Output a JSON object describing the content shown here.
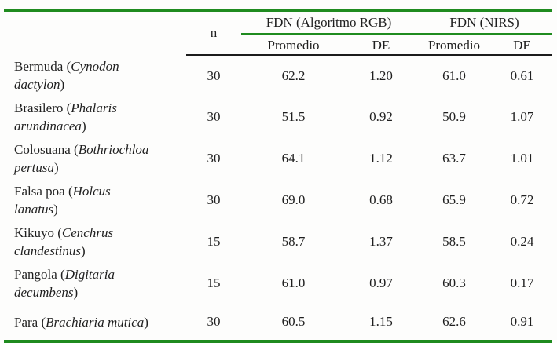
{
  "table": {
    "n_header": "n",
    "group_headers": [
      "FDN (Algoritmo RGB)",
      "FDN (NIRS)"
    ],
    "sub_headers": [
      "Promedio",
      "DE",
      "Promedio",
      "DE"
    ],
    "paren_open": "(",
    "paren_close": ")",
    "rows": [
      {
        "common": "Bermuda",
        "scientific": "Cynodon dactylon",
        "n": "30",
        "rgb_promedio": "62.2",
        "rgb_de": "1.20",
        "nirs_promedio": "61.0",
        "nirs_de": "0.61"
      },
      {
        "common": "Brasilero",
        "scientific": "Phalaris arundinacea",
        "n": "30",
        "rgb_promedio": "51.5",
        "rgb_de": "0.92",
        "nirs_promedio": "50.9",
        "nirs_de": "1.07"
      },
      {
        "common": "Colosuana",
        "scientific": "Bothriochloa pertusa",
        "n": "30",
        "rgb_promedio": "64.1",
        "rgb_de": "1.12",
        "nirs_promedio": "63.7",
        "nirs_de": "1.01"
      },
      {
        "common": "Falsa poa",
        "scientific": "Holcus lanatus",
        "n": "30",
        "rgb_promedio": "69.0",
        "rgb_de": "0.68",
        "nirs_promedio": "65.9",
        "nirs_de": "0.72"
      },
      {
        "common": "Kikuyo",
        "scientific": "Cenchrus clandestinus",
        "n": "15",
        "rgb_promedio": "58.7",
        "rgb_de": "1.37",
        "nirs_promedio": "58.5",
        "nirs_de": "0.24"
      },
      {
        "common": "Pangola",
        "scientific": "Digitaria decumbens",
        "n": "15",
        "rgb_promedio": "61.0",
        "rgb_de": "0.97",
        "nirs_promedio": "60.3",
        "nirs_de": "0.17"
      },
      {
        "common": "Para",
        "scientific": "Brachiaria mutica",
        "n": "30",
        "rgb_promedio": "60.5",
        "rgb_de": "1.15",
        "nirs_promedio": "62.6",
        "nirs_de": "0.91"
      }
    ]
  },
  "colors": {
    "accent_green": "#1f8b1f",
    "line_black": "#1c1c1c",
    "text_color": "#1f1f1f",
    "page_bg": "#fdfdfc"
  }
}
